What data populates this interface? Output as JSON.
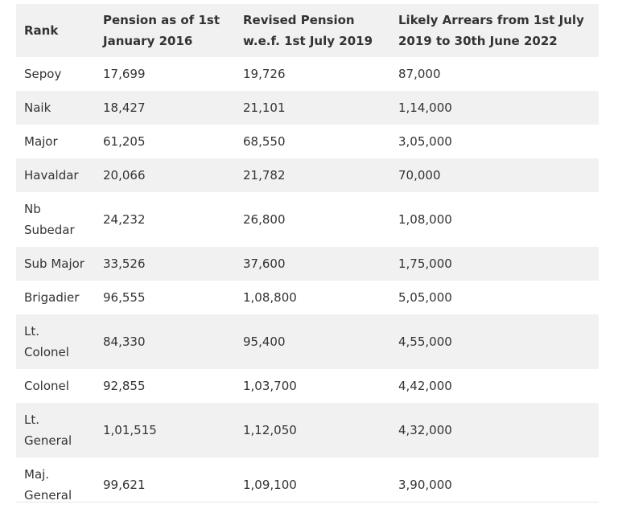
{
  "table": {
    "headers": [
      "Rank",
      "Pension as of 1st January 2016",
      "Revised Pension w.e.f. 1st July 2019",
      "Likely Arrears from 1st July 2019 to 30th June 2022"
    ],
    "rows": [
      [
        "Sepoy",
        "17,699",
        "19,726",
        "87,000"
      ],
      [
        "Naik",
        "18,427",
        "21,101",
        "1,14,000"
      ],
      [
        "Major",
        "61,205",
        "68,550",
        "3,05,000"
      ],
      [
        "Havaldar",
        "20,066",
        "21,782",
        "70,000"
      ],
      [
        "Nb Subedar",
        "24,232",
        "26,800",
        "1,08,000"
      ],
      [
        "Sub Major",
        "33,526",
        "37,600",
        "1,75,000"
      ],
      [
        "Brigadier",
        "96,555",
        "1,08,800",
        "5,05,000"
      ],
      [
        "Lt. Colonel",
        "84,330",
        "95,400",
        "4,55,000"
      ],
      [
        "Colonel",
        "92,855",
        "1,03,700",
        "4,42,000"
      ],
      [
        "Lt. General",
        "1,01,515",
        "1,12,050",
        "4,32,000"
      ],
      [
        "Maj. General",
        "99,621",
        "1,09,100",
        "3,90,000"
      ]
    ]
  }
}
